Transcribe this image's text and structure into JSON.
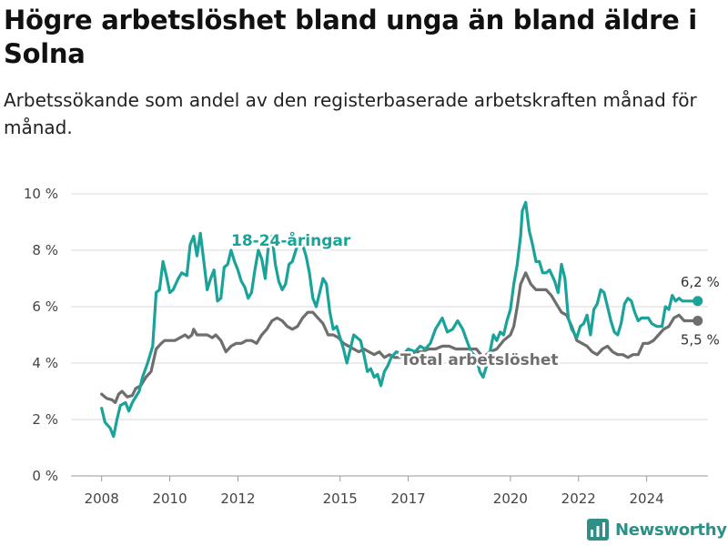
{
  "header": {
    "title": "Högre arbetslöshet bland unga än bland äldre i Solna",
    "subtitle": "Arbetssökande som andel av den registerbaserade arbetskraften månad för månad."
  },
  "brand": {
    "name": "Newsworthy"
  },
  "colors": {
    "young": "#1aa39a",
    "total": "#6e6e6e",
    "grid": "#d9d9d9",
    "axis": "#444444",
    "brand": "#2d8f86"
  },
  "chart_data": {
    "type": "line",
    "title": "Högre arbetslöshet bland unga än bland äldre i Solna",
    "subtitle": "Arbetssökande som andel av den registerbaserade arbetskraften månad för månad.",
    "xlabel": "",
    "ylabel": "",
    "y_ticks": [
      "0 %",
      "2 %",
      "4 %",
      "6 %",
      "8 %",
      "10 %"
    ],
    "ylim": [
      0,
      10
    ],
    "xlim": [
      2007.1,
      2025.8
    ],
    "x_ticks": [
      {
        "value": 2008,
        "label": "2008"
      },
      {
        "value": 2010,
        "label": "2010"
      },
      {
        "value": 2012,
        "label": "2012"
      },
      {
        "value": 2015,
        "label": "2015"
      },
      {
        "value": 2017,
        "label": "2017"
      },
      {
        "value": 2020,
        "label": "2020"
      },
      {
        "value": 2022,
        "label": "2022"
      },
      {
        "value": 2024,
        "label": "2024"
      }
    ],
    "grid": "horizontal",
    "legend": "direct labels on series",
    "series": [
      {
        "name": "18-24-åringar",
        "color": "#1aa39a",
        "end_label": "6,2 %",
        "points": [
          [
            2008.0,
            2.4
          ],
          [
            2008.1,
            1.9
          ],
          [
            2008.25,
            1.7
          ],
          [
            2008.35,
            1.4
          ],
          [
            2008.45,
            2.0
          ],
          [
            2008.55,
            2.5
          ],
          [
            2008.7,
            2.6
          ],
          [
            2008.8,
            2.3
          ],
          [
            2008.9,
            2.6
          ],
          [
            2009.0,
            2.8
          ],
          [
            2009.1,
            3.0
          ],
          [
            2009.2,
            3.5
          ],
          [
            2009.35,
            4.0
          ],
          [
            2009.5,
            4.6
          ],
          [
            2009.6,
            6.5
          ],
          [
            2009.7,
            6.6
          ],
          [
            2009.8,
            7.6
          ],
          [
            2009.9,
            7.1
          ],
          [
            2010.0,
            6.5
          ],
          [
            2010.1,
            6.6
          ],
          [
            2010.25,
            7.0
          ],
          [
            2010.35,
            7.2
          ],
          [
            2010.5,
            7.1
          ],
          [
            2010.6,
            8.2
          ],
          [
            2010.7,
            8.5
          ],
          [
            2010.8,
            7.8
          ],
          [
            2010.9,
            8.6
          ],
          [
            2011.0,
            7.6
          ],
          [
            2011.1,
            6.6
          ],
          [
            2011.2,
            7.0
          ],
          [
            2011.3,
            7.3
          ],
          [
            2011.4,
            6.2
          ],
          [
            2011.5,
            6.3
          ],
          [
            2011.6,
            7.4
          ],
          [
            2011.7,
            7.5
          ],
          [
            2011.8,
            8.0
          ],
          [
            2011.9,
            7.6
          ],
          [
            2012.0,
            7.3
          ],
          [
            2012.1,
            6.9
          ],
          [
            2012.2,
            6.7
          ],
          [
            2012.3,
            6.3
          ],
          [
            2012.4,
            6.5
          ],
          [
            2012.5,
            7.3
          ],
          [
            2012.6,
            8.0
          ],
          [
            2012.7,
            7.7
          ],
          [
            2012.8,
            7.0
          ],
          [
            2012.9,
            8.2
          ],
          [
            2013.0,
            8.5
          ],
          [
            2013.1,
            7.5
          ],
          [
            2013.2,
            6.9
          ],
          [
            2013.3,
            6.6
          ],
          [
            2013.4,
            6.8
          ],
          [
            2013.5,
            7.5
          ],
          [
            2013.6,
            7.6
          ],
          [
            2013.7,
            8.0
          ],
          [
            2013.8,
            8.4
          ],
          [
            2013.9,
            8.2
          ],
          [
            2014.0,
            7.8
          ],
          [
            2014.1,
            7.2
          ],
          [
            2014.2,
            6.3
          ],
          [
            2014.3,
            6.0
          ],
          [
            2014.4,
            6.5
          ],
          [
            2014.5,
            7.0
          ],
          [
            2014.6,
            6.8
          ],
          [
            2014.7,
            5.8
          ],
          [
            2014.8,
            5.2
          ],
          [
            2014.9,
            5.3
          ],
          [
            2015.0,
            4.9
          ],
          [
            2015.1,
            4.5
          ],
          [
            2015.2,
            4.0
          ],
          [
            2015.3,
            4.5
          ],
          [
            2015.4,
            5.0
          ],
          [
            2015.5,
            4.9
          ],
          [
            2015.6,
            4.8
          ],
          [
            2015.7,
            4.3
          ],
          [
            2015.8,
            3.7
          ],
          [
            2015.9,
            3.8
          ],
          [
            2016.0,
            3.5
          ],
          [
            2016.1,
            3.6
          ],
          [
            2016.2,
            3.2
          ],
          [
            2016.3,
            3.7
          ],
          [
            2016.4,
            3.9
          ],
          [
            2016.5,
            4.2
          ],
          [
            2016.65,
            4.4
          ],
          [
            2016.85,
            4.3
          ],
          [
            2017.0,
            4.5
          ],
          [
            2017.2,
            4.4
          ],
          [
            2017.35,
            4.6
          ],
          [
            2017.5,
            4.5
          ],
          [
            2017.65,
            4.7
          ],
          [
            2017.8,
            5.2
          ],
          [
            2018.0,
            5.6
          ],
          [
            2018.15,
            5.1
          ],
          [
            2018.3,
            5.2
          ],
          [
            2018.45,
            5.5
          ],
          [
            2018.6,
            5.2
          ],
          [
            2018.75,
            4.7
          ],
          [
            2018.85,
            4.4
          ],
          [
            2019.0,
            4.2
          ],
          [
            2019.1,
            3.7
          ],
          [
            2019.2,
            3.5
          ],
          [
            2019.35,
            4.1
          ],
          [
            2019.5,
            5.0
          ],
          [
            2019.6,
            4.8
          ],
          [
            2019.7,
            5.1
          ],
          [
            2019.8,
            5.0
          ],
          [
            2019.9,
            5.5
          ],
          [
            2020.0,
            5.9
          ],
          [
            2020.1,
            6.8
          ],
          [
            2020.2,
            7.5
          ],
          [
            2020.3,
            8.5
          ],
          [
            2020.35,
            9.4
          ],
          [
            2020.45,
            9.7
          ],
          [
            2020.55,
            8.7
          ],
          [
            2020.65,
            8.2
          ],
          [
            2020.75,
            7.6
          ],
          [
            2020.85,
            7.6
          ],
          [
            2020.95,
            7.2
          ],
          [
            2021.05,
            7.2
          ],
          [
            2021.15,
            7.3
          ],
          [
            2021.3,
            6.9
          ],
          [
            2021.4,
            6.5
          ],
          [
            2021.5,
            7.5
          ],
          [
            2021.6,
            7.0
          ],
          [
            2021.7,
            5.6
          ],
          [
            2021.8,
            5.2
          ],
          [
            2021.95,
            4.9
          ],
          [
            2022.05,
            5.3
          ],
          [
            2022.15,
            5.4
          ],
          [
            2022.25,
            5.7
          ],
          [
            2022.35,
            5.0
          ],
          [
            2022.45,
            5.9
          ],
          [
            2022.55,
            6.1
          ],
          [
            2022.65,
            6.6
          ],
          [
            2022.75,
            6.5
          ],
          [
            2022.85,
            6.0
          ],
          [
            2022.95,
            5.5
          ],
          [
            2023.05,
            5.1
          ],
          [
            2023.15,
            5.0
          ],
          [
            2023.25,
            5.4
          ],
          [
            2023.35,
            6.1
          ],
          [
            2023.45,
            6.3
          ],
          [
            2023.55,
            6.2
          ],
          [
            2023.65,
            5.8
          ],
          [
            2023.75,
            5.5
          ],
          [
            2023.85,
            5.6
          ],
          [
            2023.95,
            5.6
          ],
          [
            2024.05,
            5.6
          ],
          [
            2024.15,
            5.4
          ],
          [
            2024.3,
            5.3
          ],
          [
            2024.45,
            5.3
          ],
          [
            2024.55,
            6.0
          ],
          [
            2024.65,
            5.9
          ],
          [
            2024.75,
            6.4
          ],
          [
            2024.85,
            6.2
          ],
          [
            2024.95,
            6.3
          ],
          [
            2025.05,
            6.2
          ],
          [
            2025.15,
            6.2
          ],
          [
            2025.25,
            6.2
          ],
          [
            2025.35,
            6.2
          ],
          [
            2025.45,
            6.2
          ],
          [
            2025.5,
            6.2
          ]
        ]
      },
      {
        "name": "Total arbetslöshet",
        "color": "#6e6e6e",
        "end_label": "5,5 %",
        "points": [
          [
            2008.0,
            2.9
          ],
          [
            2008.15,
            2.75
          ],
          [
            2008.3,
            2.7
          ],
          [
            2008.4,
            2.6
          ],
          [
            2008.5,
            2.9
          ],
          [
            2008.6,
            3.0
          ],
          [
            2008.75,
            2.8
          ],
          [
            2008.9,
            2.85
          ],
          [
            2009.0,
            3.1
          ],
          [
            2009.15,
            3.2
          ],
          [
            2009.3,
            3.5
          ],
          [
            2009.45,
            3.7
          ],
          [
            2009.6,
            4.5
          ],
          [
            2009.75,
            4.7
          ],
          [
            2009.85,
            4.8
          ],
          [
            2010.0,
            4.8
          ],
          [
            2010.15,
            4.8
          ],
          [
            2010.3,
            4.9
          ],
          [
            2010.45,
            5.0
          ],
          [
            2010.55,
            4.9
          ],
          [
            2010.65,
            5.0
          ],
          [
            2010.7,
            5.2
          ],
          [
            2010.8,
            5.0
          ],
          [
            2010.95,
            5.0
          ],
          [
            2011.1,
            5.0
          ],
          [
            2011.25,
            4.9
          ],
          [
            2011.35,
            5.0
          ],
          [
            2011.5,
            4.8
          ],
          [
            2011.65,
            4.4
          ],
          [
            2011.8,
            4.6
          ],
          [
            2011.95,
            4.7
          ],
          [
            2012.1,
            4.7
          ],
          [
            2012.25,
            4.8
          ],
          [
            2012.4,
            4.8
          ],
          [
            2012.55,
            4.7
          ],
          [
            2012.7,
            5.0
          ],
          [
            2012.85,
            5.2
          ],
          [
            2013.0,
            5.5
          ],
          [
            2013.15,
            5.6
          ],
          [
            2013.3,
            5.5
          ],
          [
            2013.45,
            5.3
          ],
          [
            2013.6,
            5.2
          ],
          [
            2013.75,
            5.3
          ],
          [
            2013.9,
            5.6
          ],
          [
            2014.05,
            5.8
          ],
          [
            2014.2,
            5.8
          ],
          [
            2014.35,
            5.6
          ],
          [
            2014.5,
            5.4
          ],
          [
            2014.65,
            5.0
          ],
          [
            2014.8,
            5.0
          ],
          [
            2014.95,
            4.9
          ],
          [
            2015.1,
            4.7
          ],
          [
            2015.25,
            4.6
          ],
          [
            2015.4,
            4.5
          ],
          [
            2015.55,
            4.4
          ],
          [
            2015.7,
            4.5
          ],
          [
            2015.85,
            4.4
          ],
          [
            2016.0,
            4.3
          ],
          [
            2016.15,
            4.4
          ],
          [
            2016.3,
            4.2
          ],
          [
            2016.45,
            4.3
          ],
          [
            2016.6,
            4.2
          ],
          [
            2016.75,
            4.2
          ],
          [
            2016.9,
            4.3
          ],
          [
            2017.05,
            4.3
          ],
          [
            2017.2,
            4.4
          ],
          [
            2017.4,
            4.4
          ],
          [
            2017.6,
            4.5
          ],
          [
            2017.8,
            4.5
          ],
          [
            2018.0,
            4.6
          ],
          [
            2018.2,
            4.6
          ],
          [
            2018.4,
            4.5
          ],
          [
            2018.6,
            4.5
          ],
          [
            2018.8,
            4.5
          ],
          [
            2019.0,
            4.5
          ],
          [
            2019.2,
            4.2
          ],
          [
            2019.4,
            4.4
          ],
          [
            2019.6,
            4.5
          ],
          [
            2019.8,
            4.8
          ],
          [
            2020.0,
            5.0
          ],
          [
            2020.1,
            5.3
          ],
          [
            2020.2,
            6.0
          ],
          [
            2020.3,
            6.8
          ],
          [
            2020.45,
            7.2
          ],
          [
            2020.6,
            6.8
          ],
          [
            2020.75,
            6.6
          ],
          [
            2020.9,
            6.6
          ],
          [
            2021.05,
            6.6
          ],
          [
            2021.2,
            6.4
          ],
          [
            2021.35,
            6.1
          ],
          [
            2021.5,
            5.8
          ],
          [
            2021.65,
            5.7
          ],
          [
            2021.8,
            5.3
          ],
          [
            2021.95,
            4.8
          ],
          [
            2022.1,
            4.7
          ],
          [
            2022.25,
            4.6
          ],
          [
            2022.4,
            4.4
          ],
          [
            2022.55,
            4.3
          ],
          [
            2022.7,
            4.5
          ],
          [
            2022.85,
            4.6
          ],
          [
            2023.0,
            4.4
          ],
          [
            2023.15,
            4.3
          ],
          [
            2023.3,
            4.3
          ],
          [
            2023.45,
            4.2
          ],
          [
            2023.6,
            4.3
          ],
          [
            2023.75,
            4.3
          ],
          [
            2023.9,
            4.7
          ],
          [
            2024.05,
            4.7
          ],
          [
            2024.2,
            4.8
          ],
          [
            2024.35,
            5.0
          ],
          [
            2024.5,
            5.2
          ],
          [
            2024.65,
            5.3
          ],
          [
            2024.8,
            5.6
          ],
          [
            2024.95,
            5.7
          ],
          [
            2025.1,
            5.5
          ],
          [
            2025.25,
            5.5
          ],
          [
            2025.4,
            5.5
          ],
          [
            2025.5,
            5.5
          ]
        ]
      }
    ]
  }
}
